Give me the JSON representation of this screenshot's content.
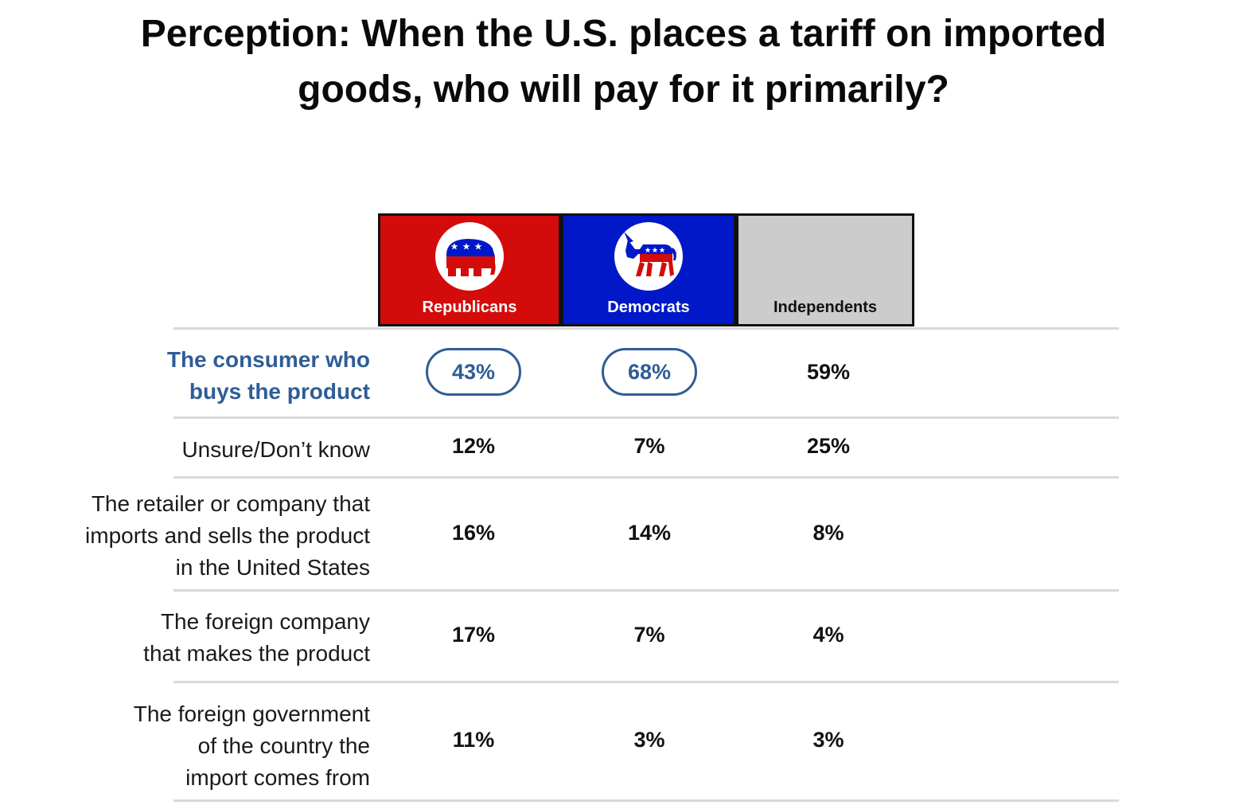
{
  "title_lines": [
    "Perception: When the U.S. places a tariff on imported",
    "goods, who will pay for it primarily?"
  ],
  "colors": {
    "republicans": "#d40b0b",
    "democrats": "#0018c8",
    "independents": "#cccccc",
    "highlight": "#2f5d95"
  },
  "chart_data": {
    "type": "table",
    "title": "Perception: When the U.S. places a tariff on imported goods, who will pay for it primarily?",
    "columns": [
      {
        "name": "Republicans",
        "icon": "republican-elephant-icon"
      },
      {
        "name": "Democrats",
        "icon": "democrat-donkey-icon"
      },
      {
        "name": "Independents",
        "icon": ""
      }
    ],
    "rows": [
      {
        "label_lines": [
          "The consumer who",
          "buys the product"
        ],
        "highlight": true,
        "circled": [
          true,
          true,
          false
        ],
        "values": [
          "43%",
          "68%",
          "59%"
        ]
      },
      {
        "label_lines": [
          "Unsure/Don’t know"
        ],
        "highlight": false,
        "circled": [
          false,
          false,
          false
        ],
        "values": [
          "12%",
          "7%",
          "25%"
        ]
      },
      {
        "label_lines": [
          "The retailer or company that",
          "imports and sells the product",
          "in the United States"
        ],
        "highlight": false,
        "circled": [
          false,
          false,
          false
        ],
        "values": [
          "16%",
          "14%",
          "8%"
        ]
      },
      {
        "label_lines": [
          "The foreign company",
          "that makes the product"
        ],
        "highlight": false,
        "circled": [
          false,
          false,
          false
        ],
        "values": [
          "17%",
          "7%",
          "4%"
        ]
      },
      {
        "label_lines": [
          "The foreign government",
          "of the country the",
          "import comes from"
        ],
        "highlight": false,
        "circled": [
          false,
          false,
          false
        ],
        "values": [
          "11%",
          "3%",
          "3%"
        ]
      }
    ]
  }
}
